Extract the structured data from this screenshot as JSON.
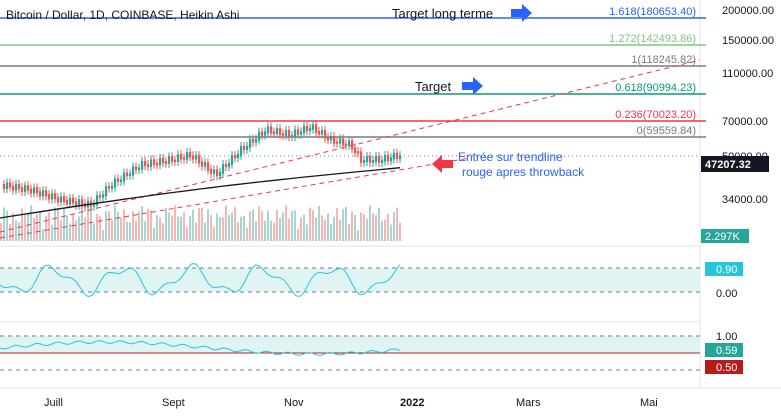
{
  "header": {
    "title": "Bitcoin / Dollar, 1D, COINBASE, Heikin Ashi"
  },
  "annotations": {
    "target_long": "Target long terme",
    "target": "Target",
    "entry_line1": "Entrée sur trendline",
    "entry_line2": "rouge apres throwback"
  },
  "fib_levels": [
    {
      "label": "1.618(180653.40)",
      "value": 180653.4,
      "color": "#2962ff"
    },
    {
      "label": "1.272(142493.86)",
      "value": 142493.86,
      "color": "#81c784"
    },
    {
      "label": "1(118245.82)",
      "value": 118245.82,
      "color": "#787b86"
    },
    {
      "label": "0.618(90994.23)",
      "value": 90994.23,
      "color": "#089981"
    },
    {
      "label": "0.236(70023.20)",
      "value": 70023.2,
      "color": "#f23645"
    },
    {
      "label": "0(59559.84)",
      "value": 59559.84,
      "color": "#787b86"
    }
  ],
  "price_scale": {
    "ticks": [
      "200000.00",
      "150000.00",
      "110000.00",
      "70000.00",
      "34000.00",
      "50000.00"
    ],
    "current_price": "47207.32",
    "current_price_color": "#131722",
    "volume_label": "2.297K",
    "volume_label_color": "#26a69a"
  },
  "oscillator1": {
    "ticks": [
      "0.90",
      "0.00"
    ],
    "current_value": "0.90",
    "current_value_color": "#26c6da"
  },
  "oscillator2": {
    "ticks": [
      "1.00"
    ],
    "current_value": "0.59",
    "current_value_color": "#26a69a",
    "red_value": "0.50",
    "red_value_color": "#b71c1c"
  },
  "time_axis": {
    "labels": [
      "Juill",
      "Sept",
      "Nov",
      "2022",
      "Mars",
      "Mai"
    ]
  },
  "colors": {
    "up_candle": "#26a69a",
    "down_candle": "#ef5350",
    "trend_red": "#f23645",
    "ma_black": "#131722",
    "arrow_blue": "#2962ff",
    "arrow_red": "#f23645",
    "osc_line": "#26c6da"
  },
  "chart_data": {
    "type": "candlestick",
    "symbol": "Bitcoin / Dollar",
    "interval": "1D",
    "exchange": "COINBASE",
    "style": "Heikin Ashi",
    "x": [
      "Juill",
      "Sept",
      "Nov",
      "2022"
    ],
    "close_approx": [
      34000,
      47000,
      61000,
      47207.32
    ],
    "last_price": 47207.32
  }
}
